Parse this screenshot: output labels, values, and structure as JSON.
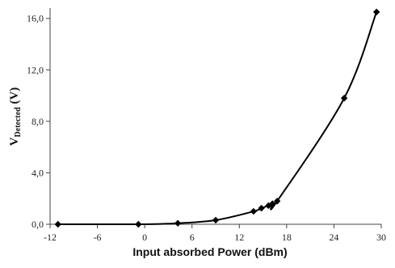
{
  "chart_data": {
    "type": "line",
    "xlabel": "Input absorbed Power (dBm)",
    "ylabel_main": "V",
    "ylabel_sub": "Detected",
    "ylabel_unit": " (V)",
    "xlim": [
      -12,
      30
    ],
    "ylim": [
      0,
      16.8
    ],
    "xticks": [
      -12,
      -6,
      0,
      6,
      12,
      18,
      24,
      30
    ],
    "xtick_labels": [
      "-12",
      "-6",
      "0",
      "6",
      "12",
      "18",
      "24",
      "30"
    ],
    "yticks": [
      0,
      4,
      8,
      12,
      16
    ],
    "ytick_labels": [
      "0,0",
      "4,0",
      "8,0",
      "12,0",
      "16,0"
    ],
    "grid": false,
    "series": [
      {
        "marker": "diamond",
        "color": "#000000",
        "x": [
          -11.0,
          -0.8,
          4.2,
          9.0,
          13.8,
          14.8,
          15.7,
          16.2,
          16.8,
          25.3,
          29.4
        ],
        "y": [
          0.0,
          0.0,
          0.08,
          0.32,
          1.0,
          1.25,
          1.45,
          1.6,
          1.8,
          9.8,
          16.5
        ]
      }
    ]
  }
}
